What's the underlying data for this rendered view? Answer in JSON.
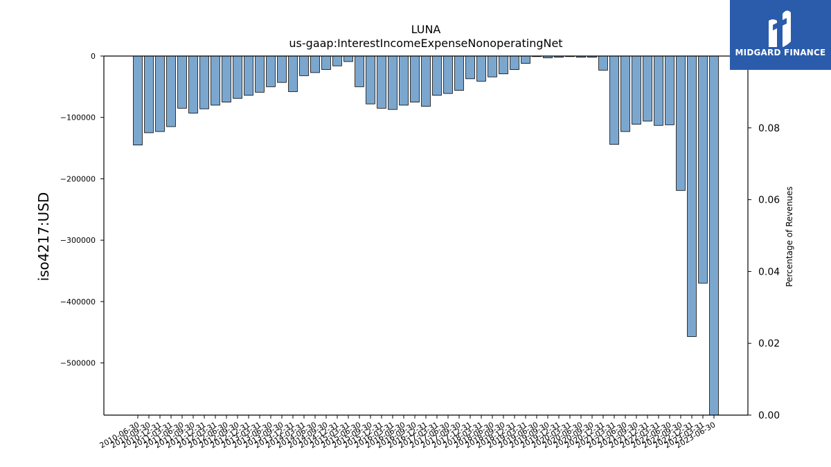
{
  "chart_data": {
    "type": "bar",
    "title": "LUNA",
    "subtitle": "us-gaap:InterestIncomeExpenseNonoperatingNet",
    "ylabel": "iso4217:USD",
    "y2label": "Percentage of Revenues",
    "ylim": [
      -585000,
      0
    ],
    "y2lim": [
      0.0,
      0.1
    ],
    "yticks": [
      0,
      -100000,
      -200000,
      -300000,
      -400000,
      -500000
    ],
    "ytick_labels": [
      "0",
      "−100000",
      "−200000",
      "−300000",
      "−400000",
      "−500000"
    ],
    "y2ticks": [
      0.0,
      0.02,
      0.04,
      0.06,
      0.08
    ],
    "y2tick_labels": [
      "0.00",
      "0.02",
      "0.04",
      "0.06",
      "0.08"
    ],
    "bar_color": "#7ba7cf",
    "categories": [
      "2010-06-30",
      "2010-09-30",
      "2010-12-31",
      "2011-03-31",
      "2011-06-30",
      "2011-09-30",
      "2011-12-31",
      "2012-03-31",
      "2012-06-30",
      "2012-09-30",
      "2012-12-31",
      "2013-03-31",
      "2013-06-30",
      "2013-09-30",
      "2013-12-31",
      "2014-03-31",
      "2014-06-30",
      "2014-09-30",
      "2014-12-31",
      "2015-03-31",
      "2015-06-30",
      "2015-09-30",
      "2015-12-31",
      "2016-03-31",
      "2016-06-30",
      "2016-09-30",
      "2016-12-31",
      "2017-03-31",
      "2017-06-30",
      "2017-09-30",
      "2017-12-31",
      "2018-03-31",
      "2018-06-30",
      "2018-09-30",
      "2018-12-31",
      "2019-03-31",
      "2019-06-30",
      "2019-09-30",
      "2019-12-31",
      "2020-03-31",
      "2020-06-30",
      "2020-09-30",
      "2020-12-31",
      "2021-03-31",
      "2021-06-30",
      "2021-09-30",
      "2021-12-31",
      "2022-03-31",
      "2022-06-30",
      "2022-09-30",
      "2022-12-31",
      "2023-03-31",
      "2023-06-30"
    ],
    "values": [
      -145000,
      -125000,
      -123000,
      -115000,
      -85000,
      -93000,
      -86000,
      -80000,
      -75000,
      -69000,
      -64000,
      -59000,
      -50000,
      -43000,
      -58000,
      -32000,
      -27000,
      -22000,
      -16000,
      -9000,
      -50000,
      -78000,
      -85000,
      -87000,
      -80000,
      -75000,
      -82000,
      -64000,
      -61000,
      -56000,
      -37000,
      -41000,
      -34000,
      -29000,
      -22000,
      -12000,
      0,
      -3000,
      -2000,
      0,
      -2000,
      -2000,
      -23000,
      -144000,
      -123000,
      -111000,
      -106000,
      -113000,
      -112000,
      -219000,
      -457000,
      -370000,
      -585000
    ]
  },
  "logo": {
    "name": "MIDGARD FINANCE",
    "color": "#2a5cab"
  }
}
